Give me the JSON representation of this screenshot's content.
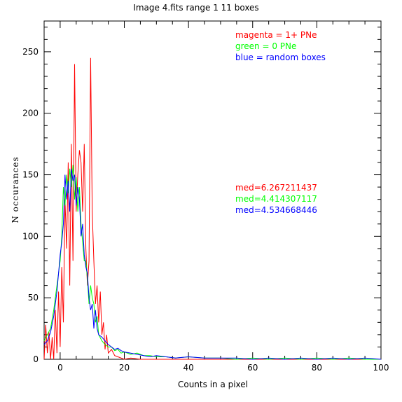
{
  "chart_data": {
    "type": "line",
    "title": "Image 4.fits   range 1    11 boxes",
    "xlabel": "Counts in a pixel",
    "ylabel": "N occurances",
    "xlim": [
      -5,
      100
    ],
    "ylim": [
      0,
      275
    ],
    "x_ticks": [
      0,
      20,
      40,
      60,
      80,
      100
    ],
    "y_ticks": [
      0,
      50,
      100,
      150,
      200,
      250
    ],
    "x_tick_labels": [
      "0",
      "20",
      "40",
      "60",
      "80",
      "100"
    ],
    "y_tick_labels": [
      "0",
      "50",
      "100",
      "150",
      "200",
      "250"
    ],
    "grid": false,
    "legend": [
      {
        "text": "magenta = 1+ PNe",
        "color": "#ff0000"
      },
      {
        "text": "green = 0 PNe",
        "color": "#00ff00"
      },
      {
        "text": "blue = random boxes",
        "color": "#0000ff"
      }
    ],
    "annotations": [
      {
        "text": "med=6.267211437",
        "color": "#ff0000"
      },
      {
        "text": "med=4.414307117",
        "color": "#00ff00"
      },
      {
        "text": "med=4.534668446",
        "color": "#0000ff"
      }
    ],
    "series": [
      {
        "color": "#ff0000",
        "x": [
          -5,
          -4.5,
          -4,
          -3.5,
          -3,
          -2.5,
          -2,
          -1.5,
          -1,
          -0.5,
          0,
          0.5,
          1,
          1.5,
          2,
          2.5,
          3,
          3.5,
          4,
          4.5,
          5,
          5.5,
          6,
          6.5,
          7,
          7.5,
          8,
          8.5,
          9,
          9.5,
          10,
          10.5,
          11,
          11.5,
          12,
          12.5,
          13,
          13.5,
          14,
          14.5,
          15,
          16,
          17,
          18,
          19,
          20,
          22,
          25,
          30,
          35,
          40,
          50,
          60,
          70,
          80,
          90,
          100
        ],
        "y": [
          0,
          28,
          5,
          22,
          0,
          18,
          0,
          40,
          5,
          55,
          10,
          75,
          30,
          130,
          90,
          160,
          60,
          175,
          80,
          240,
          120,
          150,
          170,
          160,
          120,
          175,
          90,
          60,
          80,
          245,
          120,
          80,
          45,
          60,
          30,
          55,
          20,
          30,
          8,
          20,
          5,
          8,
          3,
          2,
          1,
          0,
          1,
          0,
          0,
          0,
          0,
          0,
          0,
          0,
          0,
          0,
          0
        ]
      },
      {
        "color": "#00ff00",
        "x": [
          -5,
          -4,
          -3,
          -2,
          -1.5,
          -1,
          -0.5,
          0,
          0.5,
          1,
          1.5,
          2,
          2.5,
          3,
          3.5,
          4,
          4.5,
          5,
          5.5,
          6,
          6.5,
          7,
          7.5,
          8,
          8.5,
          9,
          9.5,
          10,
          10.5,
          11,
          11.5,
          12,
          13,
          14,
          15,
          16,
          17,
          18,
          19,
          20,
          22,
          24,
          26,
          28,
          30,
          33,
          36,
          40,
          45,
          50,
          55,
          60,
          65,
          70,
          75,
          80,
          85,
          90,
          95,
          100
        ],
        "y": [
          15,
          20,
          25,
          40,
          50,
          60,
          70,
          80,
          100,
          140,
          125,
          150,
          135,
          155,
          140,
          158,
          130,
          148,
          120,
          140,
          110,
          95,
          80,
          80,
          65,
          45,
          60,
          50,
          45,
          30,
          35,
          20,
          15,
          12,
          10,
          10,
          7,
          8,
          5,
          6,
          4,
          5,
          3,
          3,
          2,
          2,
          1,
          2,
          1,
          1,
          0,
          1,
          0,
          1,
          0,
          1,
          0,
          1,
          0,
          0
        ]
      },
      {
        "color": "#0000ff",
        "x": [
          -5,
          -4,
          -3,
          -2,
          -1.5,
          -1,
          -0.5,
          0,
          0.5,
          1,
          1.5,
          2,
          2.5,
          3,
          3.5,
          4,
          4.5,
          5,
          5.5,
          6,
          6.5,
          7,
          7.5,
          8,
          8.5,
          9,
          9.5,
          10,
          10.5,
          11,
          11.5,
          12,
          13,
          14,
          15,
          16,
          17,
          18,
          19,
          20,
          22,
          24,
          26,
          28,
          30,
          33,
          36,
          40,
          45,
          50,
          55,
          60,
          65,
          70,
          75,
          80,
          85,
          90,
          95,
          100
        ],
        "y": [
          12,
          15,
          22,
          35,
          45,
          55,
          70,
          85,
          95,
          110,
          150,
          130,
          145,
          120,
          155,
          145,
          150,
          125,
          140,
          130,
          100,
          110,
          85,
          75,
          70,
          50,
          40,
          45,
          25,
          40,
          25,
          20,
          18,
          15,
          12,
          10,
          8,
          9,
          7,
          6,
          5,
          4,
          3,
          2,
          3,
          2,
          1,
          2,
          1,
          1,
          1,
          0,
          1,
          0,
          1,
          0,
          1,
          0,
          1,
          0
        ]
      }
    ]
  }
}
